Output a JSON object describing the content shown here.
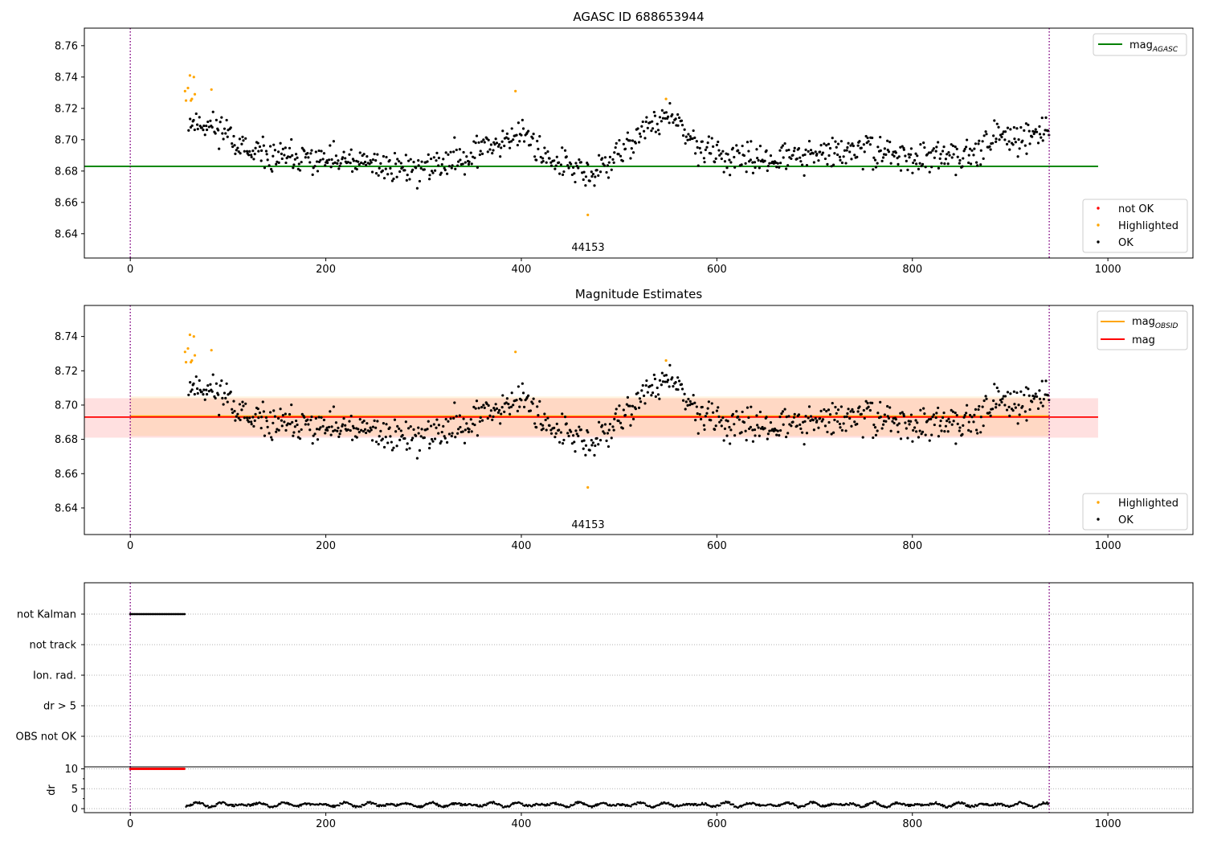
{
  "chart_data": [
    {
      "type": "scatter",
      "title": "AGASC ID 688653944",
      "annotation": "44153",
      "xlim": [
        -47,
        1087
      ],
      "ylim": [
        8.6245,
        8.7712
      ],
      "x_ticks": [
        0,
        200,
        400,
        600,
        800,
        1000
      ],
      "y_ticks": [
        8.64,
        8.66,
        8.68,
        8.7,
        8.72,
        8.74,
        8.76
      ],
      "vertical_lines": [
        0,
        940
      ],
      "colors": {
        "ok": "#000000",
        "highlighted": "#ffa500",
        "not_ok": "#ff0000",
        "agasc_line": "#008000",
        "vline": "#800080"
      },
      "lines": [
        {
          "name": "mag",
          "subscript": "AGASC",
          "y": 8.683,
          "x_range": [
            -47,
            990
          ]
        }
      ],
      "legend_upper": [
        {
          "label": "mag",
          "subscript": "AGASC",
          "marker": "line",
          "color": "#008000"
        }
      ],
      "legend_lower": [
        {
          "label": "not OK",
          "marker": "dot",
          "color": "#ff0000"
        },
        {
          "label": "Highlighted",
          "marker": "dot",
          "color": "#ffa500"
        },
        {
          "label": "OK",
          "marker": "dot",
          "color": "#000000"
        }
      ],
      "series": [
        {
          "name": "OK",
          "color": "#000000",
          "x_range": [
            60,
            940
          ],
          "count": 850,
          "seed": 11,
          "trend": [
            [
              60,
              8.712
            ],
            [
              100,
              8.706
            ],
            [
              120,
              8.69
            ],
            [
              170,
              8.688
            ],
            [
              250,
              8.684
            ],
            [
              300,
              8.681
            ],
            [
              360,
              8.694
            ],
            [
              400,
              8.705
            ],
            [
              420,
              8.692
            ],
            [
              470,
              8.676
            ],
            [
              500,
              8.69
            ],
            [
              520,
              8.704
            ],
            [
              550,
              8.716
            ],
            [
              580,
              8.695
            ],
            [
              620,
              8.687
            ],
            [
              700,
              8.69
            ],
            [
              760,
              8.694
            ],
            [
              800,
              8.688
            ],
            [
              840,
              8.688
            ],
            [
              880,
              8.7
            ],
            [
              940,
              8.705
            ]
          ],
          "noise": 0.006
        },
        {
          "name": "Highlighted",
          "color": "#ffa500",
          "x": [
            56,
            57,
            59,
            61,
            62,
            63,
            65,
            66,
            83,
            394,
            468,
            548
          ],
          "y": [
            8.731,
            8.725,
            8.733,
            8.741,
            8.725,
            8.726,
            8.74,
            8.729,
            8.732,
            8.731,
            8.652,
            8.726
          ]
        },
        {
          "name": "not OK",
          "color": "#ff0000",
          "x": [],
          "y": []
        }
      ]
    },
    {
      "type": "scatter",
      "title": "Magnitude Estimates",
      "annotation": "44153",
      "xlim": [
        -47,
        1087
      ],
      "ylim": [
        8.6245,
        8.7581
      ],
      "x_ticks": [
        0,
        200,
        400,
        600,
        800,
        1000
      ],
      "y_ticks": [
        8.64,
        8.66,
        8.68,
        8.7,
        8.72,
        8.74
      ],
      "vertical_lines": [
        0,
        940
      ],
      "colors": {
        "ok": "#000000",
        "highlighted": "#ffa500",
        "mag_line": "#ff0000",
        "obsid_line": "#ffa500",
        "vline": "#800080"
      },
      "lines": [
        {
          "name": "mag",
          "subscript": "OBSID",
          "y": 8.6935,
          "x_range": [
            0,
            940
          ],
          "band": [
            8.682,
            8.705
          ],
          "band_color": "#ffa500"
        },
        {
          "name": "mag",
          "y": 8.693,
          "x_range": [
            -47,
            990
          ],
          "band": [
            8.681,
            8.704
          ],
          "band_color": "#ff0000"
        }
      ],
      "legend_upper": [
        {
          "label": "mag",
          "subscript": "OBSID",
          "marker": "line",
          "color": "#ffa500"
        },
        {
          "label": "mag",
          "marker": "line",
          "color": "#ff0000"
        }
      ],
      "legend_lower": [
        {
          "label": "Highlighted",
          "marker": "dot",
          "color": "#ffa500"
        },
        {
          "label": "OK",
          "marker": "dot",
          "color": "#000000"
        }
      ]
    },
    {
      "type": "scatter",
      "xlim": [
        -47,
        1087
      ],
      "x_ticks": [
        0,
        200,
        400,
        600,
        800,
        1000
      ],
      "vertical_lines": [
        0,
        940
      ],
      "flag_rows": [
        "not Kalman",
        "not track",
        "Ion. rad.",
        "dr > 5",
        "OBS not OK"
      ],
      "flag_series": [
        {
          "row": "not Kalman",
          "x_range": [
            0,
            56
          ],
          "step": 1.5
        }
      ],
      "dr": {
        "ylabel": "dr",
        "ylim": [
          -1,
          10.5
        ],
        "y_ticks": [
          0,
          5,
          10
        ],
        "clipped": {
          "x_range": [
            0,
            56
          ],
          "y": 10,
          "color": "#ff0000"
        },
        "series": {
          "x_range": [
            57,
            940
          ],
          "color": "#000000",
          "mean": 1.0,
          "amplitude": 0.6
        }
      }
    }
  ]
}
